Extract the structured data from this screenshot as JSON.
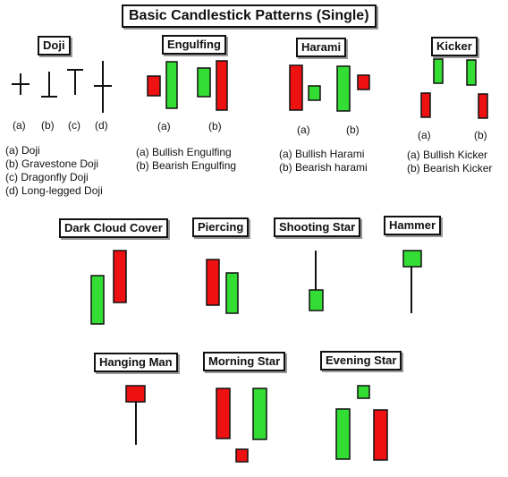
{
  "title": "Basic Candlestick Patterns (Single)",
  "colors": {
    "bullish": "#33dd33",
    "bearish": "#ee1111"
  },
  "doji": {
    "heading": "Doji",
    "labels": [
      "(a)",
      "(b)",
      "(c)",
      "(d)"
    ],
    "captions": [
      "(a) Doji",
      "(b) Gravestone Doji",
      "(c) Dragonfly Doji",
      "(d) Long-legged Doji"
    ]
  },
  "engulfing": {
    "heading": "Engulfing",
    "labels": [
      "(a)",
      "(b)"
    ],
    "captions": [
      "(a) Bullish Engulfing",
      "(b) Bearish Engulfing"
    ]
  },
  "harami": {
    "heading": "Harami",
    "labels": [
      "(a)",
      "(b)"
    ],
    "captions": [
      "(a) Bullish Harami",
      "(b) Bearish harami"
    ]
  },
  "kicker": {
    "heading": "Kicker",
    "labels": [
      "(a)",
      "(b)"
    ],
    "captions": [
      "(a) Bullish Kicker",
      "(b) Bearish Kicker"
    ]
  },
  "dark_cloud": {
    "heading": "Dark Cloud Cover"
  },
  "piercing": {
    "heading": "Piercing"
  },
  "shooting_star": {
    "heading": "Shooting Star"
  },
  "hammer": {
    "heading": "Hammer"
  },
  "hanging_man": {
    "heading": "Hanging Man"
  },
  "morning_star": {
    "heading": "Morning Star"
  },
  "evening_star": {
    "heading": "Evening Star"
  }
}
